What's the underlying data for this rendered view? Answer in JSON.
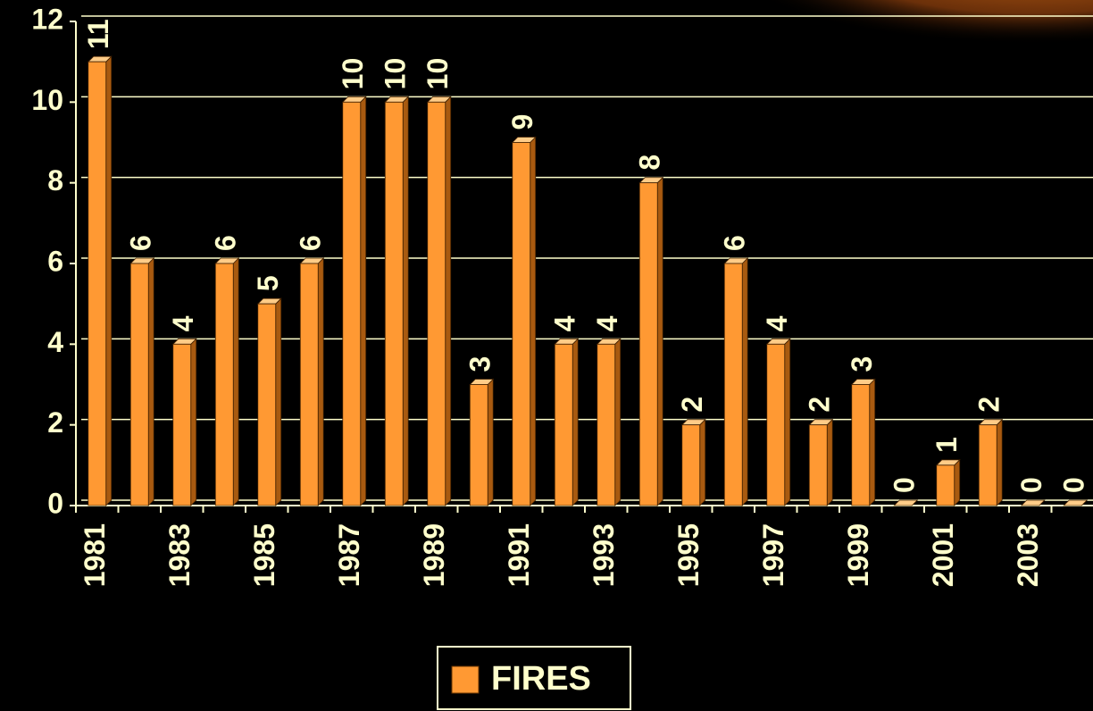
{
  "chart_data": {
    "type": "bar",
    "categories": [
      "1981",
      null,
      "1983",
      null,
      "1985",
      null,
      "1987",
      null,
      "1989",
      null,
      "1991",
      null,
      "1993",
      null,
      "1995",
      null,
      "1997",
      null,
      "1999",
      null,
      "2001",
      null,
      "2003",
      null
    ],
    "series": [
      {
        "name": "FIRES",
        "color": "#ff9933",
        "values": [
          11,
          6,
          4,
          6,
          5,
          6,
          10,
          10,
          10,
          3,
          9,
          4,
          4,
          8,
          2,
          6,
          4,
          2,
          3,
          0,
          1,
          2,
          0,
          0
        ]
      }
    ],
    "ylim": [
      0,
      12
    ],
    "yticks": [
      0,
      2,
      4,
      6,
      8,
      10,
      12
    ],
    "grid": true,
    "legend": "bottom"
  }
}
